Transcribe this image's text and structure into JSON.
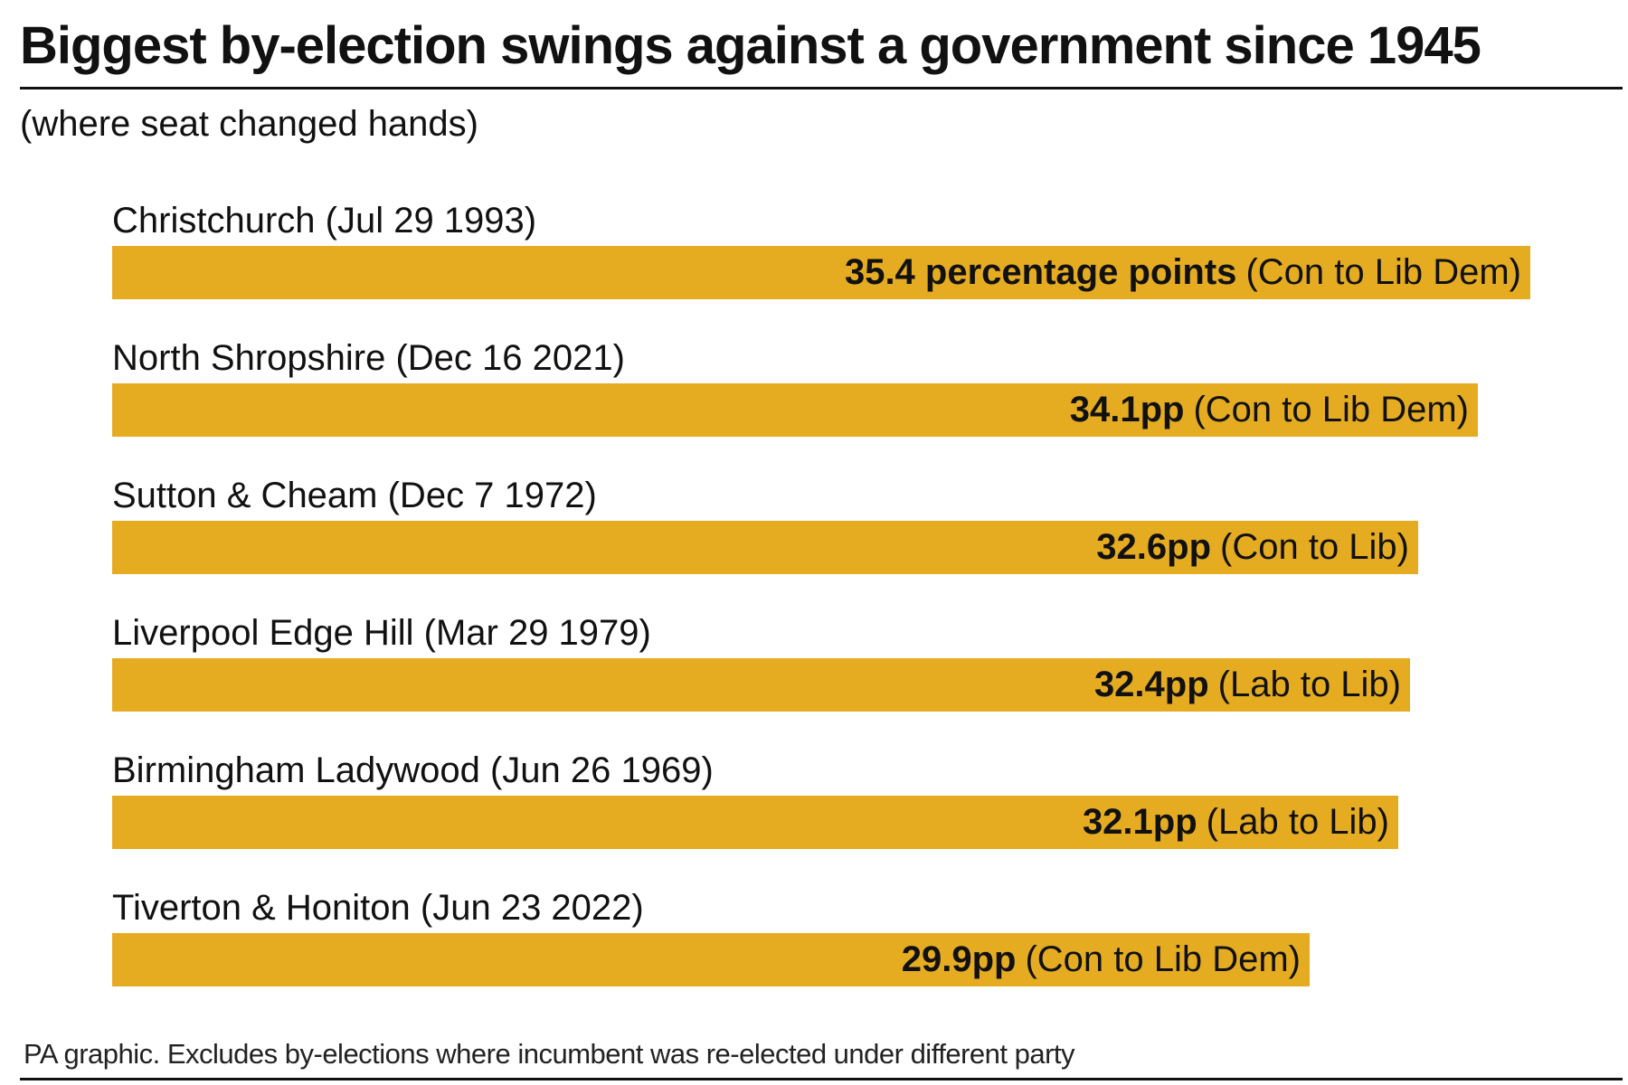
{
  "title": "Biggest by-election swings against a government since 1945",
  "subtitle": "(where seat changed hands)",
  "footer": "PA graphic. Excludes by-elections where incumbent was re-elected under different party",
  "colors": {
    "bar": "#E5AC22",
    "text": "#111111",
    "rule": "#111111",
    "background": "#FFFFFF"
  },
  "chart_data": {
    "type": "bar",
    "orientation": "horizontal",
    "unit": "percentage points",
    "categories": [
      "Christchurch (Jul 29 1993)",
      "North Shropshire (Dec 16 2021)",
      "Sutton & Cheam (Dec 7 1972)",
      "Liverpool Edge Hill (Mar 29 1979)",
      "Birmingham Ladywood (Jun 26 1969)",
      "Tiverton & Honiton (Jun 23 2022)"
    ],
    "values": [
      35.4,
      34.1,
      32.6,
      32.4,
      32.1,
      29.9
    ],
    "value_labels": [
      "35.4 percentage points",
      "34.1pp",
      "32.6pp",
      "32.4pp",
      "32.1pp",
      "29.9pp"
    ],
    "swing_labels": [
      "(Con to Lib Dem)",
      "(Con to Lib Dem)",
      "(Con to Lib)",
      "(Lab to Lib)",
      "(Lab to Lib)",
      "(Con to Lib Dem)"
    ],
    "title": "Biggest by-election swings against a government since 1945",
    "xlabel": "",
    "ylabel": "",
    "xlim": [
      0,
      35.4
    ],
    "grid": false,
    "legend": "none"
  }
}
